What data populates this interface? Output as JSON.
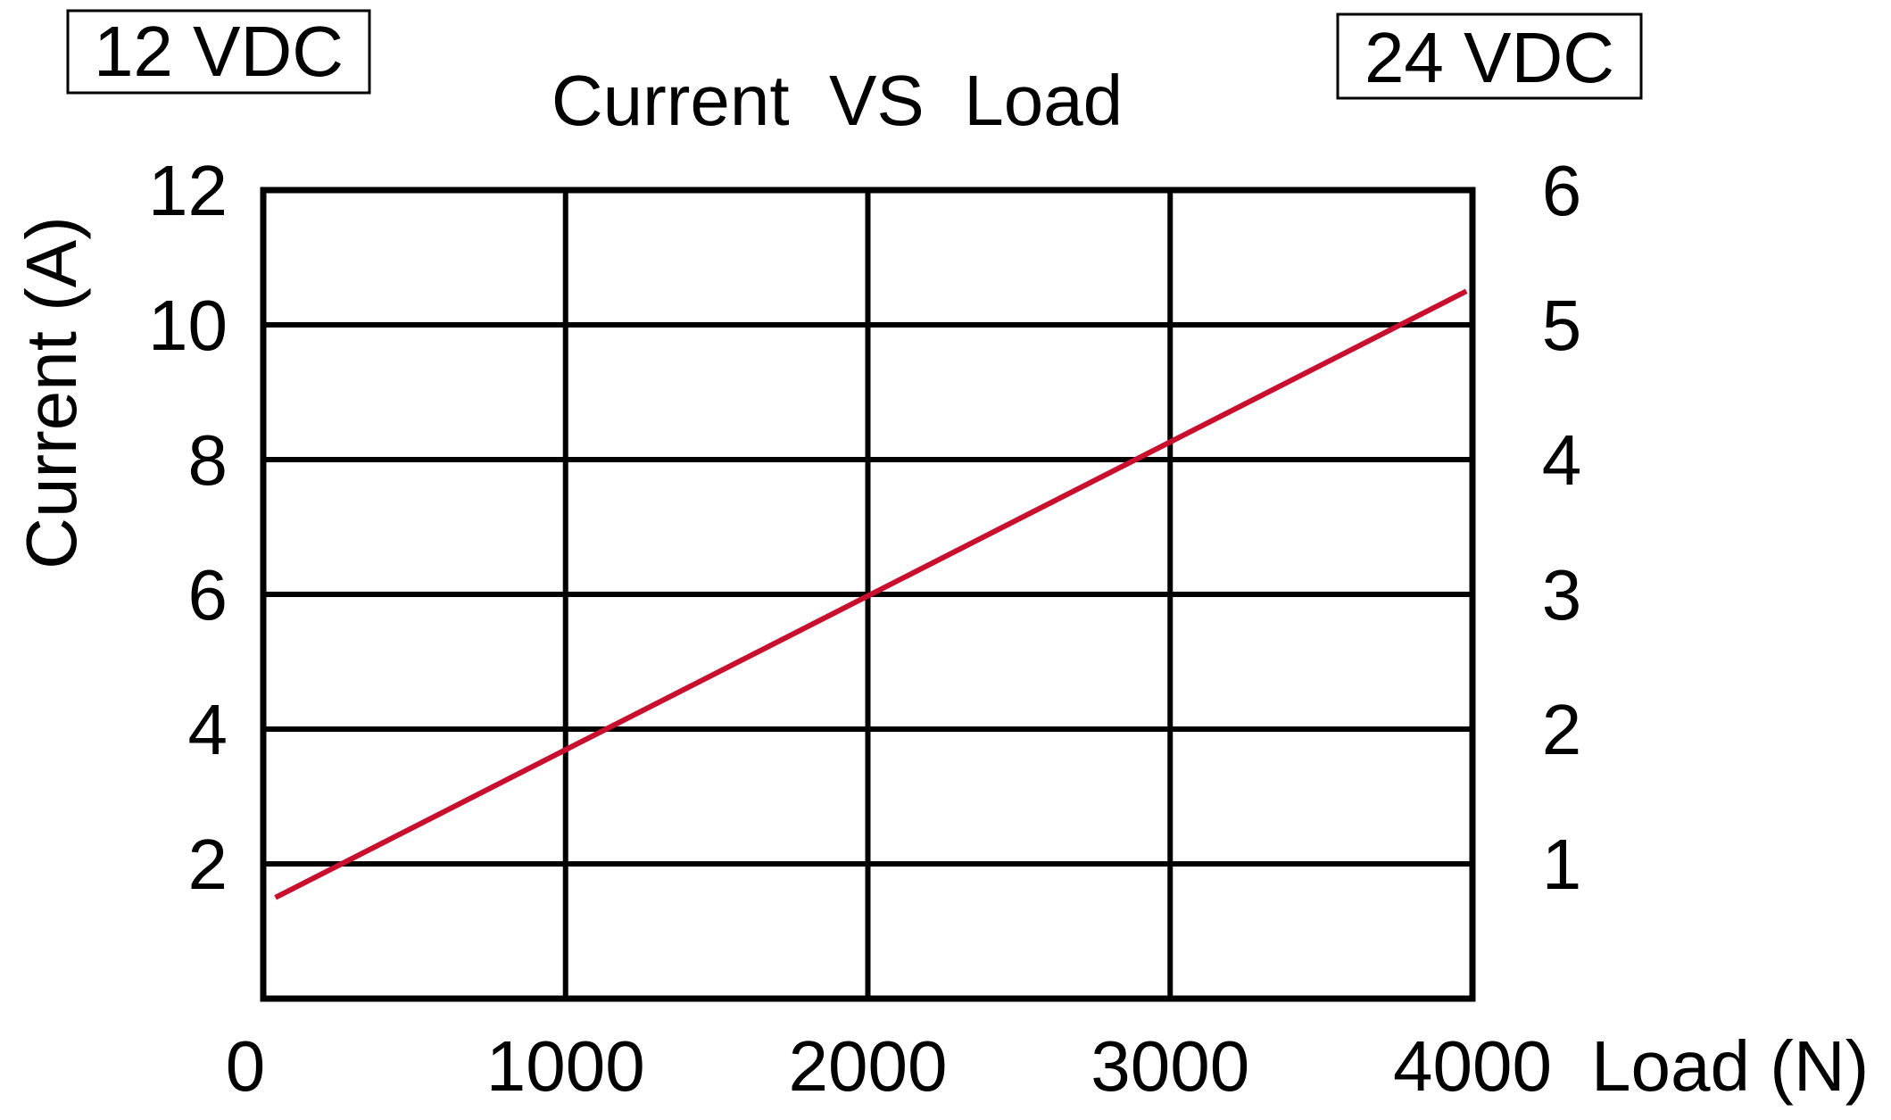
{
  "chart_data": {
    "type": "line",
    "title": "Current  VS  Load",
    "xlabel": "Load (N)",
    "ylabel": "Current (A)",
    "left_axis_label_box": "12 VDC",
    "right_axis_label_box": "24 VDC",
    "xlim": [
      0,
      4000
    ],
    "ylim": [
      0,
      12
    ],
    "ylim_right": [
      0,
      6
    ],
    "x_ticks": [
      "0",
      "1000",
      "2000",
      "3000",
      "4000"
    ],
    "y_ticks_left": [
      "2",
      "4",
      "6",
      "8",
      "10",
      "12"
    ],
    "y_ticks_right": [
      "1",
      "2",
      "3",
      "4",
      "5",
      "6"
    ],
    "grid": true,
    "series": [
      {
        "color": "#c8102e",
        "x": [
          40,
          3980
        ],
        "y": [
          1.5,
          10.5
        ]
      }
    ]
  }
}
